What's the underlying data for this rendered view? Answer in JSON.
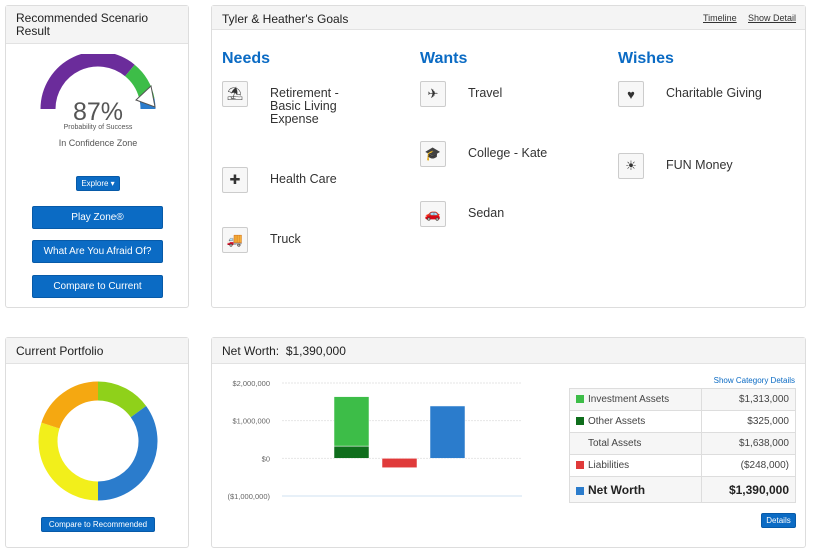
{
  "scenario": {
    "title": "Recommended Scenario Result",
    "percent": "87%",
    "prob_label": "Probability of Success",
    "zone_label": "In Confidence Zone",
    "explore": "Explore",
    "buttons": [
      "Play Zone®",
      "What Are You Afraid Of?",
      "Compare to Current"
    ],
    "gauge": {
      "value": 0.87,
      "colors": {
        "low": "#6b2c9b",
        "mid": "#3dbd48",
        "high": "#2b7ccc"
      }
    }
  },
  "goals": {
    "title": "Tyler & Heather's Goals",
    "links": [
      "Timeline",
      "Show Detail"
    ],
    "columns": [
      {
        "title": "Needs",
        "items": [
          {
            "label": "Retirement - Basic Living Expense",
            "icon": "beach-icon"
          },
          {
            "label": "Health Care",
            "icon": "health-icon"
          },
          {
            "label": "Truck",
            "icon": "truck-icon"
          }
        ]
      },
      {
        "title": "Wants",
        "items": [
          {
            "label": "Travel",
            "icon": "travel-icon"
          },
          {
            "label": "College - Kate",
            "icon": "college-icon"
          },
          {
            "label": "Sedan",
            "icon": "car-icon"
          }
        ]
      },
      {
        "title": "Wishes",
        "items": [
          {
            "label": "Charitable Giving",
            "icon": "charity-icon"
          },
          {
            "label": "FUN Money",
            "icon": "fun-icon"
          }
        ]
      }
    ]
  },
  "portfolio": {
    "title": "Current Portfolio",
    "button": "Compare to Recommended",
    "slices": [
      {
        "value": 15,
        "color": "#8fd11a"
      },
      {
        "value": 35,
        "color": "#2b7ccc"
      },
      {
        "value": 30,
        "color": "#f2ef1b"
      },
      {
        "value": 20,
        "color": "#f5a811"
      }
    ]
  },
  "networth": {
    "title": "Net Worth:",
    "total": "$1,390,000",
    "show_details": "Show Category Details",
    "details_button": "Details",
    "rows": [
      {
        "label": "Investment Assets",
        "value": "$1,313,000",
        "color": "#3dbd48"
      },
      {
        "label": "Other Assets",
        "value": "$325,000",
        "color": "#0f6e1c"
      },
      {
        "label": "Total Assets",
        "value": "$1,638,000",
        "color": ""
      },
      {
        "label": "Liabilities",
        "value": "($248,000)",
        "color": "#e03a3a"
      },
      {
        "label": "Net Worth",
        "value": "$1,390,000",
        "color": "#2b7ccc"
      }
    ]
  },
  "chart_data": {
    "type": "bar",
    "ylim": [
      -1000000,
      2000000
    ],
    "yticks": [
      2000000,
      1000000,
      0,
      -1000000
    ],
    "ytick_labels": [
      "$2,000,000",
      "$1,000,000",
      "$0",
      "($1,000,000)"
    ],
    "bars": [
      {
        "name": "Assets",
        "segments": [
          {
            "label": "Other Assets",
            "value": 325000,
            "color": "#0f6e1c"
          },
          {
            "label": "Investment Assets",
            "value": 1313000,
            "color": "#3dbd48"
          }
        ]
      },
      {
        "name": "Liabilities",
        "segments": [
          {
            "label": "Liabilities",
            "value": -248000,
            "color": "#e03a3a"
          }
        ]
      },
      {
        "name": "Net Worth",
        "segments": [
          {
            "label": "Net Worth",
            "value": 1390000,
            "color": "#2b7ccc"
          }
        ]
      }
    ]
  }
}
